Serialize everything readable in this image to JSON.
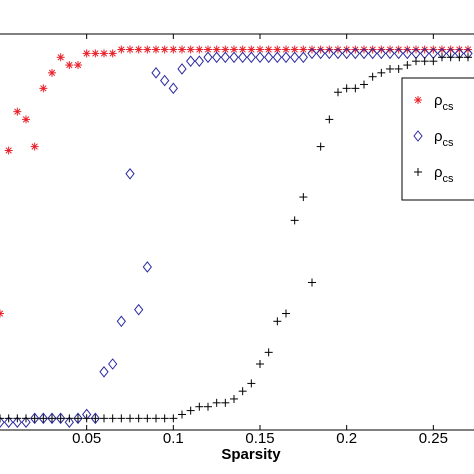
{
  "chart_data": {
    "type": "scatter",
    "title": "",
    "xlabel": "Sparsity",
    "ylabel": "",
    "xlim": [
      0.0,
      0.27
    ],
    "ylim": [
      0.0,
      1.02
    ],
    "xticks": [
      0.05,
      0.1,
      0.15,
      0.2,
      0.25
    ],
    "xtick_labels": [
      "0.05",
      "0.1",
      "0.15",
      "0.2",
      "0.25"
    ],
    "grid": false,
    "legend": {
      "position": "right",
      "entries": [
        "ρcs",
        "ρcs",
        "ρcs"
      ]
    },
    "series": [
      {
        "name": "ρcs",
        "marker": "asterisk",
        "color": "#e8202a",
        "x": [
          0.0,
          0.005,
          0.01,
          0.015,
          0.02,
          0.025,
          0.03,
          0.035,
          0.04,
          0.045,
          0.05,
          0.055,
          0.06,
          0.065,
          0.07,
          0.075,
          0.08,
          0.085,
          0.09,
          0.095,
          0.1,
          0.105,
          0.11,
          0.115,
          0.12,
          0.125,
          0.13,
          0.135,
          0.14,
          0.145,
          0.15,
          0.155,
          0.16,
          0.165,
          0.17,
          0.175,
          0.18,
          0.185,
          0.19,
          0.195,
          0.2,
          0.205,
          0.21,
          0.215,
          0.22,
          0.225,
          0.23,
          0.235,
          0.24,
          0.245,
          0.25,
          0.255,
          0.26,
          0.265,
          0.27
        ],
        "y": [
          0.3,
          0.72,
          0.82,
          0.8,
          0.73,
          0.88,
          0.92,
          0.96,
          0.94,
          0.94,
          0.97,
          0.97,
          0.97,
          0.97,
          0.98,
          0.98,
          0.98,
          0.98,
          0.98,
          0.98,
          0.98,
          0.98,
          0.98,
          0.98,
          0.98,
          0.98,
          0.98,
          0.98,
          0.98,
          0.98,
          0.98,
          0.98,
          0.98,
          0.98,
          0.98,
          0.98,
          0.98,
          0.98,
          0.98,
          0.98,
          0.98,
          0.98,
          0.98,
          0.98,
          0.98,
          0.98,
          0.98,
          0.98,
          0.98,
          0.98,
          0.98,
          0.98,
          0.98,
          0.98,
          0.98
        ]
      },
      {
        "name": "ρcs",
        "marker": "diamond",
        "color": "#2a2aa0",
        "x": [
          0.0,
          0.005,
          0.01,
          0.015,
          0.02,
          0.025,
          0.03,
          0.035,
          0.04,
          0.045,
          0.05,
          0.055,
          0.06,
          0.065,
          0.07,
          0.075,
          0.08,
          0.085,
          0.09,
          0.095,
          0.1,
          0.105,
          0.11,
          0.115,
          0.12,
          0.125,
          0.13,
          0.135,
          0.14,
          0.145,
          0.15,
          0.155,
          0.16,
          0.165,
          0.17,
          0.175,
          0.18,
          0.185,
          0.19,
          0.195,
          0.2,
          0.205,
          0.21,
          0.215,
          0.22,
          0.225,
          0.23,
          0.235,
          0.24,
          0.245,
          0.25,
          0.255,
          0.26,
          0.265,
          0.27
        ],
        "y": [
          0.02,
          0.02,
          0.02,
          0.02,
          0.03,
          0.03,
          0.03,
          0.03,
          0.02,
          0.03,
          0.04,
          0.03,
          0.15,
          0.17,
          0.28,
          0.66,
          0.31,
          0.42,
          0.92,
          0.9,
          0.88,
          0.93,
          0.95,
          0.95,
          0.96,
          0.96,
          0.96,
          0.96,
          0.96,
          0.96,
          0.96,
          0.96,
          0.96,
          0.96,
          0.96,
          0.96,
          0.97,
          0.97,
          0.97,
          0.97,
          0.97,
          0.97,
          0.97,
          0.97,
          0.97,
          0.97,
          0.97,
          0.97,
          0.97,
          0.97,
          0.97,
          0.97,
          0.97,
          0.97,
          0.97
        ]
      },
      {
        "name": "ρcs",
        "marker": "plus",
        "color": "#000000",
        "x": [
          0.0,
          0.005,
          0.01,
          0.015,
          0.02,
          0.025,
          0.03,
          0.035,
          0.04,
          0.045,
          0.05,
          0.055,
          0.06,
          0.065,
          0.07,
          0.075,
          0.08,
          0.085,
          0.09,
          0.095,
          0.1,
          0.105,
          0.11,
          0.115,
          0.12,
          0.125,
          0.13,
          0.135,
          0.14,
          0.145,
          0.15,
          0.155,
          0.16,
          0.165,
          0.17,
          0.175,
          0.18,
          0.185,
          0.19,
          0.195,
          0.2,
          0.205,
          0.21,
          0.215,
          0.22,
          0.225,
          0.23,
          0.235,
          0.24,
          0.245,
          0.25,
          0.255,
          0.26,
          0.265,
          0.27
        ],
        "y": [
          0.03,
          0.03,
          0.03,
          0.03,
          0.03,
          0.03,
          0.03,
          0.03,
          0.03,
          0.03,
          0.03,
          0.03,
          0.03,
          0.03,
          0.03,
          0.03,
          0.03,
          0.03,
          0.03,
          0.03,
          0.03,
          0.04,
          0.05,
          0.06,
          0.06,
          0.07,
          0.07,
          0.08,
          0.1,
          0.12,
          0.17,
          0.2,
          0.28,
          0.3,
          0.54,
          0.6,
          0.38,
          0.73,
          0.8,
          0.87,
          0.88,
          0.88,
          0.89,
          0.91,
          0.92,
          0.93,
          0.93,
          0.94,
          0.95,
          0.95,
          0.95,
          0.96,
          0.96,
          0.96,
          0.96
        ]
      }
    ]
  }
}
